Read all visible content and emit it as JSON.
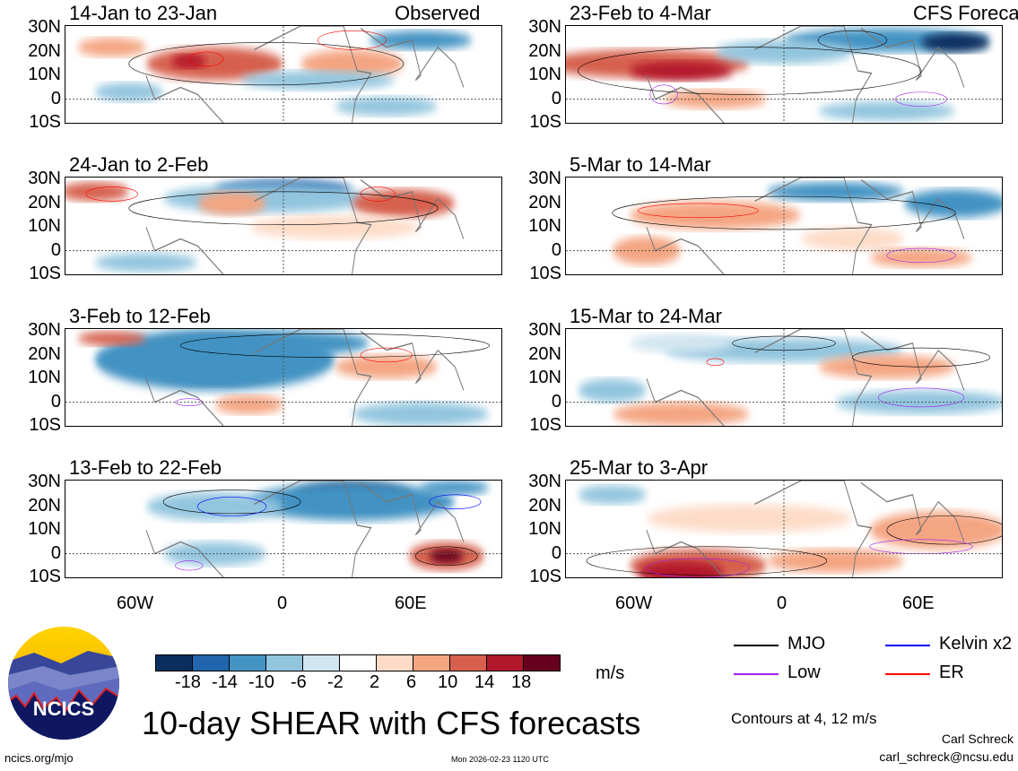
{
  "panels_left_header": "Observed",
  "panels_right_header": "CFS Forecast",
  "panels": [
    {
      "title": "14-Jan to 23-Jan",
      "type": "observed"
    },
    {
      "title": "24-Jan to 2-Feb",
      "type": "observed"
    },
    {
      "title": "3-Feb to 12-Feb",
      "type": "observed"
    },
    {
      "title": "13-Feb to 22-Feb",
      "type": "observed"
    },
    {
      "title": "23-Feb to 4-Mar",
      "type": "forecast"
    },
    {
      "title": "5-Mar to 14-Mar",
      "type": "forecast"
    },
    {
      "title": "15-Mar to 24-Mar",
      "type": "forecast"
    },
    {
      "title": "25-Mar to 3-Apr",
      "type": "forecast"
    }
  ],
  "lat_labels": [
    "30N",
    "20N",
    "10N",
    "0",
    "10S"
  ],
  "lon_labels": [
    "60W",
    "0",
    "60E"
  ],
  "colorbar": {
    "colors": [
      "#0a2f5f",
      "#2166ac",
      "#4393c3",
      "#92c5de",
      "#d1e5f0",
      "#ffffff",
      "#fddbc7",
      "#f4a582",
      "#d6604d",
      "#b2182b",
      "#67001f"
    ],
    "ticks": [
      "-18",
      "-14",
      "-10",
      "-6",
      "-2",
      "2",
      "6",
      "10",
      "14",
      "18"
    ],
    "units": "m/s"
  },
  "legend": [
    {
      "label": "MJO",
      "color": "#000000"
    },
    {
      "label": "Kelvin x2",
      "color": "#0000ff"
    },
    {
      "label": "Low",
      "color": "#a020f0"
    },
    {
      "label": "ER",
      "color": "#ff0000"
    }
  ],
  "contours_note": "Contours at 4, 12 m/s",
  "title": "10-day SHEAR with CFS forecasts",
  "logo_text": "NCICS",
  "website": "ncics.org/mjo",
  "timestamp": "Mon 2026-02-23 1120 UTC",
  "author": "Carl Schreck",
  "email": "carl_schreck@ncsu.edu"
}
